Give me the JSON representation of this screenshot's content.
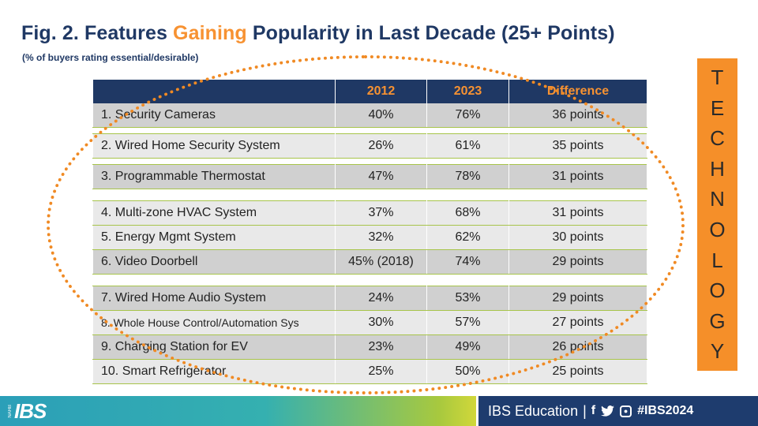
{
  "title": {
    "prefix": "Fig. 2. Features ",
    "highlight": "Gaining",
    "suffix": " Popularity in Last Decade (25+ Points)"
  },
  "subtitle": "(% of buyers rating essential/desirable)",
  "table": {
    "headers": [
      "",
      "2012",
      "2023",
      "Difference"
    ],
    "rows": [
      [
        "1. Security Cameras",
        "40%",
        "76%",
        "36 points"
      ],
      [
        "2. Wired Home Security System",
        "26%",
        "61%",
        "35 points"
      ],
      [
        "3. Programmable Thermostat",
        "47%",
        "78%",
        "31 points"
      ],
      [
        "4. Multi-zone HVAC System",
        "37%",
        "68%",
        "31 points"
      ],
      [
        "5. Energy Mgmt System",
        "32%",
        "62%",
        "30 points"
      ],
      [
        "6. Video Doorbell",
        "45% (2018)",
        "74%",
        "29 points"
      ],
      [
        "7. Wired Home Audio System",
        "24%",
        "53%",
        "29 points"
      ],
      [
        "8. Whole House Control/Automation Sys",
        "30%",
        "57%",
        "27 points"
      ],
      [
        "9. Charging Station for EV",
        "23%",
        "49%",
        "26 points"
      ],
      [
        "10. Smart Refrigerator",
        "25%",
        "50%",
        "25 points"
      ]
    ]
  },
  "side_label": [
    "T",
    "E",
    "C",
    "H",
    "N",
    "O",
    "L",
    "O",
    "G",
    "Y"
  ],
  "footer": {
    "logo_small": "NAHB",
    "logo": "IBS",
    "text": "IBS Education",
    "separator": "|",
    "social_icons": [
      "facebook-icon",
      "twitter-icon",
      "instagram-icon"
    ],
    "hashtag": "#IBS2024"
  },
  "colors": {
    "navy": "#1f3864",
    "orange": "#f79232",
    "row_dark": "#d0d0d0",
    "row_light": "#e9e9e9",
    "footer_blue": "#1e3c6e"
  }
}
